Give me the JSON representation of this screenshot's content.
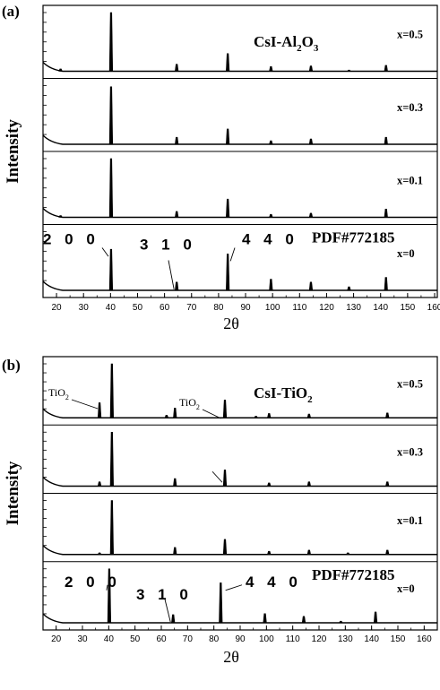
{
  "chart_data": [
    {
      "type": "line",
      "panel_label": "(a)",
      "title": "CsI-Al",
      "title_sub1": "2",
      "title_mid": "O",
      "title_sub2": "3",
      "xlabel": "2θ",
      "ylabel": "Intensity",
      "xlim": [
        15,
        161
      ],
      "xticks": [
        20,
        30,
        40,
        50,
        60,
        70,
        80,
        90,
        100,
        110,
        120,
        130,
        140,
        150,
        160
      ],
      "reference": "PDF#772185",
      "hkl": [
        {
          "label": "2 0 0",
          "x": 40.2
        },
        {
          "label": "3 1 0",
          "x": 64.5
        },
        {
          "label": "4 4 0",
          "x": 83.4
        }
      ],
      "series": [
        {
          "name": "x=0.5",
          "peaks": [
            [
              21.5,
              0.04
            ],
            [
              40.2,
              1.0
            ],
            [
              64.5,
              0.12
            ],
            [
              83.4,
              0.3
            ],
            [
              99.4,
              0.08
            ],
            [
              114.2,
              0.09
            ],
            [
              128.3,
              0.02
            ],
            [
              142.0,
              0.1
            ]
          ]
        },
        {
          "name": "x=0.3",
          "peaks": [
            [
              40.2,
              0.98
            ],
            [
              64.5,
              0.12
            ],
            [
              83.4,
              0.26
            ],
            [
              99.4,
              0.06
            ],
            [
              114.2,
              0.09
            ],
            [
              142.0,
              0.12
            ]
          ]
        },
        {
          "name": "x=0.1",
          "peaks": [
            [
              21.5,
              0.03
            ],
            [
              40.2,
              1.0
            ],
            [
              64.5,
              0.1
            ],
            [
              83.4,
              0.31
            ],
            [
              99.4,
              0.05
            ],
            [
              114.2,
              0.07
            ],
            [
              142.0,
              0.14
            ]
          ]
        },
        {
          "name": "x=0",
          "peaks": [
            [
              40.2,
              0.7
            ],
            [
              64.5,
              0.14
            ],
            [
              83.4,
              0.62
            ],
            [
              99.4,
              0.19
            ],
            [
              114.2,
              0.14
            ],
            [
              128.3,
              0.06
            ],
            [
              142.0,
              0.22
            ]
          ]
        }
      ]
    },
    {
      "type": "line",
      "panel_label": "(b)",
      "title": "CsI-TiO",
      "title_sub1": "2",
      "title_mid": "",
      "title_sub2": "",
      "xlabel": "2θ",
      "ylabel": "Intensity",
      "xlim": [
        15,
        165
      ],
      "xticks": [
        20,
        30,
        40,
        50,
        60,
        70,
        80,
        90,
        100,
        110,
        120,
        130,
        140,
        150,
        160
      ],
      "reference": "PDF#772185",
      "hkl": [
        {
          "label": "2 0 0",
          "x": 40.2
        },
        {
          "label": "3 1 0",
          "x": 64.5
        },
        {
          "label": "4 4 0",
          "x": 83.4
        }
      ],
      "annotations": [
        {
          "text": "TiO",
          "sub": "2",
          "x": 36.5,
          "series": "x=0.5"
        },
        {
          "text": "TiO",
          "sub": "2",
          "x": 83.4,
          "series": "x=0.5"
        }
      ],
      "series": [
        {
          "name": "x=0.5",
          "peaks": [
            [
              36.5,
              0.28
            ],
            [
              41.2,
              1.0
            ],
            [
              62.0,
              0.05
            ],
            [
              65.2,
              0.18
            ],
            [
              84.2,
              0.33
            ],
            [
              96.0,
              0.03
            ],
            [
              101.0,
              0.08
            ],
            [
              116.2,
              0.07
            ],
            [
              146.0,
              0.09
            ]
          ]
        },
        {
          "name": "x=0.3",
          "peaks": [
            [
              36.5,
              0.08
            ],
            [
              41.2,
              1.0
            ],
            [
              65.2,
              0.14
            ],
            [
              84.2,
              0.3
            ],
            [
              101.0,
              0.06
            ],
            [
              116.2,
              0.08
            ],
            [
              146.0,
              0.08
            ]
          ]
        },
        {
          "name": "x=0.1",
          "peaks": [
            [
              36.5,
              0.03
            ],
            [
              41.2,
              1.0
            ],
            [
              65.2,
              0.13
            ],
            [
              84.2,
              0.28
            ],
            [
              101.0,
              0.06
            ],
            [
              116.2,
              0.08
            ],
            [
              131.0,
              0.03
            ],
            [
              146.0,
              0.08
            ]
          ]
        },
        {
          "name": "x=0",
          "peaks": [
            [
              40.2,
              1.0
            ],
            [
              64.5,
              0.15
            ],
            [
              82.6,
              0.74
            ],
            [
              99.4,
              0.17
            ],
            [
              114.2,
              0.12
            ],
            [
              128.3,
              0.03
            ],
            [
              141.5,
              0.2
            ]
          ]
        }
      ]
    }
  ]
}
